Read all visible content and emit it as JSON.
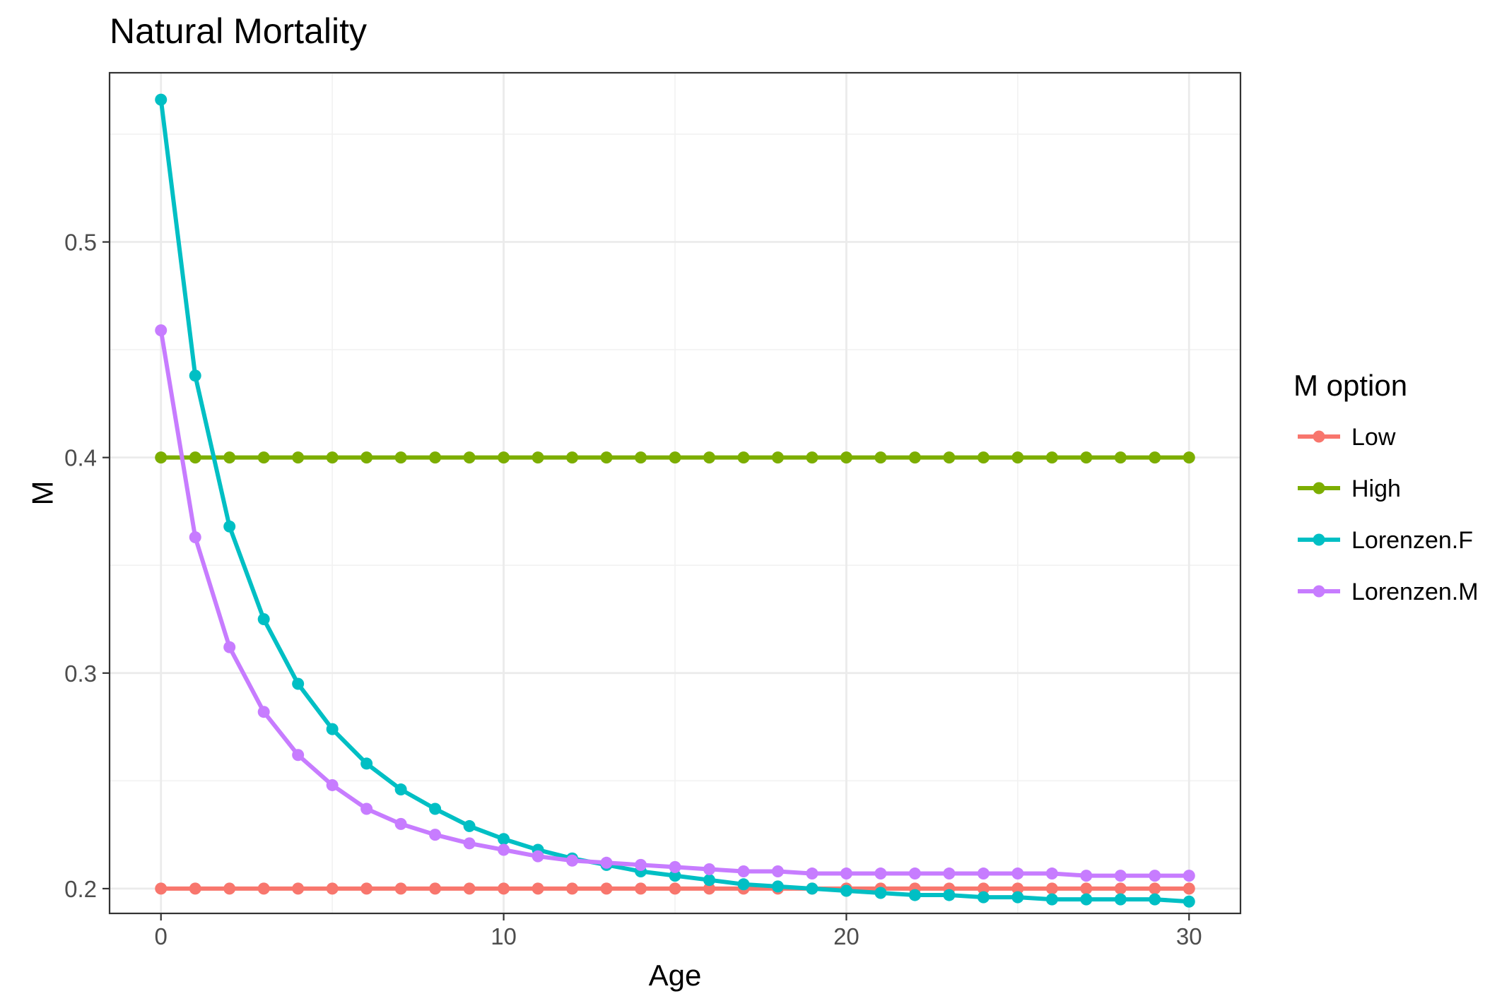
{
  "chart_data": {
    "type": "line",
    "title": "Natural Mortality",
    "xlabel": "Age",
    "ylabel": "M",
    "xlim": [
      -1.5,
      31.5
    ],
    "ylim": [
      0.1885,
      0.5785
    ],
    "x_ticks": [
      0,
      10,
      20,
      30
    ],
    "x_tick_labels": [
      "0",
      "10",
      "20",
      "30"
    ],
    "y_ticks": [
      0.2,
      0.3,
      0.4,
      0.5
    ],
    "y_tick_labels": [
      "0.2",
      "0.3",
      "0.4",
      "0.5"
    ],
    "grid": true,
    "legend": {
      "title": "M option",
      "position": "right"
    },
    "x": [
      0,
      1,
      2,
      3,
      4,
      5,
      6,
      7,
      8,
      9,
      10,
      11,
      12,
      13,
      14,
      15,
      16,
      17,
      18,
      19,
      20,
      21,
      22,
      23,
      24,
      25,
      26,
      27,
      28,
      29,
      30
    ],
    "series": [
      {
        "name": "Low",
        "color": "#F8766D",
        "values": [
          0.2,
          0.2,
          0.2,
          0.2,
          0.2,
          0.2,
          0.2,
          0.2,
          0.2,
          0.2,
          0.2,
          0.2,
          0.2,
          0.2,
          0.2,
          0.2,
          0.2,
          0.2,
          0.2,
          0.2,
          0.2,
          0.2,
          0.2,
          0.2,
          0.2,
          0.2,
          0.2,
          0.2,
          0.2,
          0.2,
          0.2
        ]
      },
      {
        "name": "High",
        "color": "#7CAE00",
        "values": [
          0.4,
          0.4,
          0.4,
          0.4,
          0.4,
          0.4,
          0.4,
          0.4,
          0.4,
          0.4,
          0.4,
          0.4,
          0.4,
          0.4,
          0.4,
          0.4,
          0.4,
          0.4,
          0.4,
          0.4,
          0.4,
          0.4,
          0.4,
          0.4,
          0.4,
          0.4,
          0.4,
          0.4,
          0.4,
          0.4,
          0.4
        ]
      },
      {
        "name": "Lorenzen.F",
        "color": "#00BFC4",
        "values": [
          0.566,
          0.438,
          0.368,
          0.325,
          0.295,
          0.274,
          0.258,
          0.246,
          0.237,
          0.229,
          0.223,
          0.218,
          0.214,
          0.211,
          0.208,
          0.206,
          0.204,
          0.202,
          0.201,
          0.2,
          0.199,
          0.198,
          0.197,
          0.197,
          0.196,
          0.196,
          0.195,
          0.195,
          0.195,
          0.195,
          0.194
        ]
      },
      {
        "name": "Lorenzen.M",
        "color": "#C77CFF",
        "values": [
          0.459,
          0.363,
          0.312,
          0.282,
          0.262,
          0.248,
          0.237,
          0.23,
          0.225,
          0.221,
          0.218,
          0.215,
          0.213,
          0.212,
          0.211,
          0.21,
          0.209,
          0.208,
          0.208,
          0.207,
          0.207,
          0.207,
          0.207,
          0.207,
          0.207,
          0.207,
          0.207,
          0.206,
          0.206,
          0.206,
          0.206
        ]
      }
    ]
  }
}
